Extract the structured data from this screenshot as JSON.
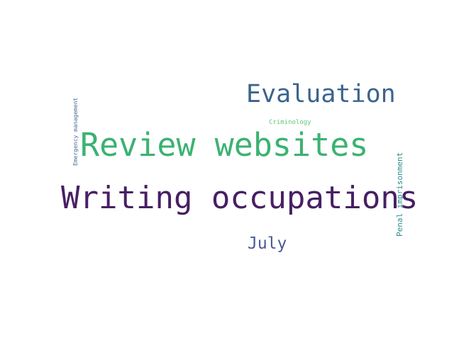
{
  "words": {
    "writing_occupations": {
      "text": "Writing occupations",
      "color": "#471f63"
    },
    "review_websites": {
      "text": "Review websites",
      "color": "#3bb272"
    },
    "evaluation": {
      "text": "Evaluation",
      "color": "#3b648d"
    },
    "july": {
      "text": "July",
      "color": "#4a5a94"
    },
    "criminology": {
      "text": "Criminology",
      "color": "#5ec77b"
    },
    "emergency_management": {
      "text": "Emergency management",
      "color": "#4a6a9a"
    },
    "penal_imprisonment": {
      "text": "Penal imprisonment",
      "color": "#2a8e8c"
    }
  }
}
